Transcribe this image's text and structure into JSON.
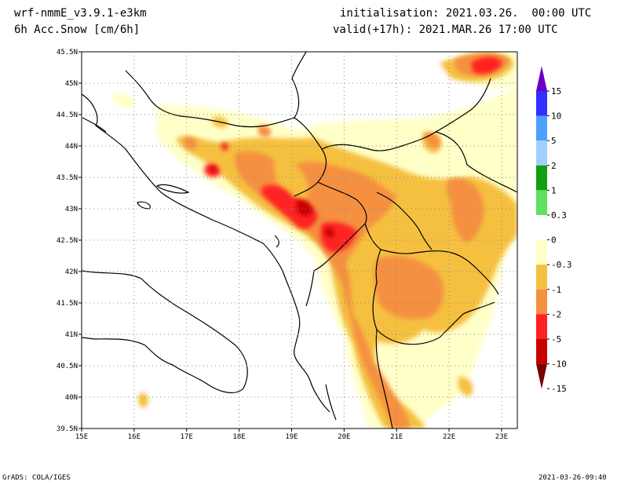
{
  "header": {
    "model": "wrf-nmmE_v3.9.1-e3km",
    "field": "6h Acc.Snow [cm/6h]",
    "init": "initialisation: 2021.03.26.  00:00 UTC",
    "valid": "valid(+17h): 2021.MAR.26 17:00 UTC"
  },
  "footer": {
    "left": "GrADS: COLA/IGES",
    "right": "2021-03-26-09:40"
  },
  "map": {
    "lat_labels": [
      "45.5N",
      "45N",
      "44.5N",
      "44N",
      "43.5N",
      "43N",
      "42.5N",
      "42N",
      "41.5N",
      "41N",
      "40.5N",
      "40N",
      "39.5N"
    ],
    "lon_labels": [
      "15E",
      "16E",
      "17E",
      "18E",
      "19E",
      "20E",
      "21E",
      "22E",
      "23E"
    ],
    "lon_range": [
      15,
      23.3
    ],
    "lat_range": [
      39.5,
      45.5
    ]
  },
  "colorbar": {
    "labels": [
      "15",
      "10",
      "5",
      "2",
      "1",
      "0.3",
      "0",
      "-0.3",
      "-1",
      "-2",
      "-5",
      "-10",
      "-15"
    ],
    "colors": [
      "#6a00c8",
      "#3030ff",
      "#4f9fff",
      "#a0d0ff",
      "#10a010",
      "#60e060",
      "#ffffff",
      "#ffffc8",
      "#f5c040",
      "#f59040",
      "#ff2020",
      "#c80000",
      "#780000"
    ]
  },
  "colors": {
    "light": "#ffffc8",
    "yellow": "#f5c040",
    "orange": "#f59040",
    "red": "#ff2020",
    "darkred": "#c80000"
  }
}
